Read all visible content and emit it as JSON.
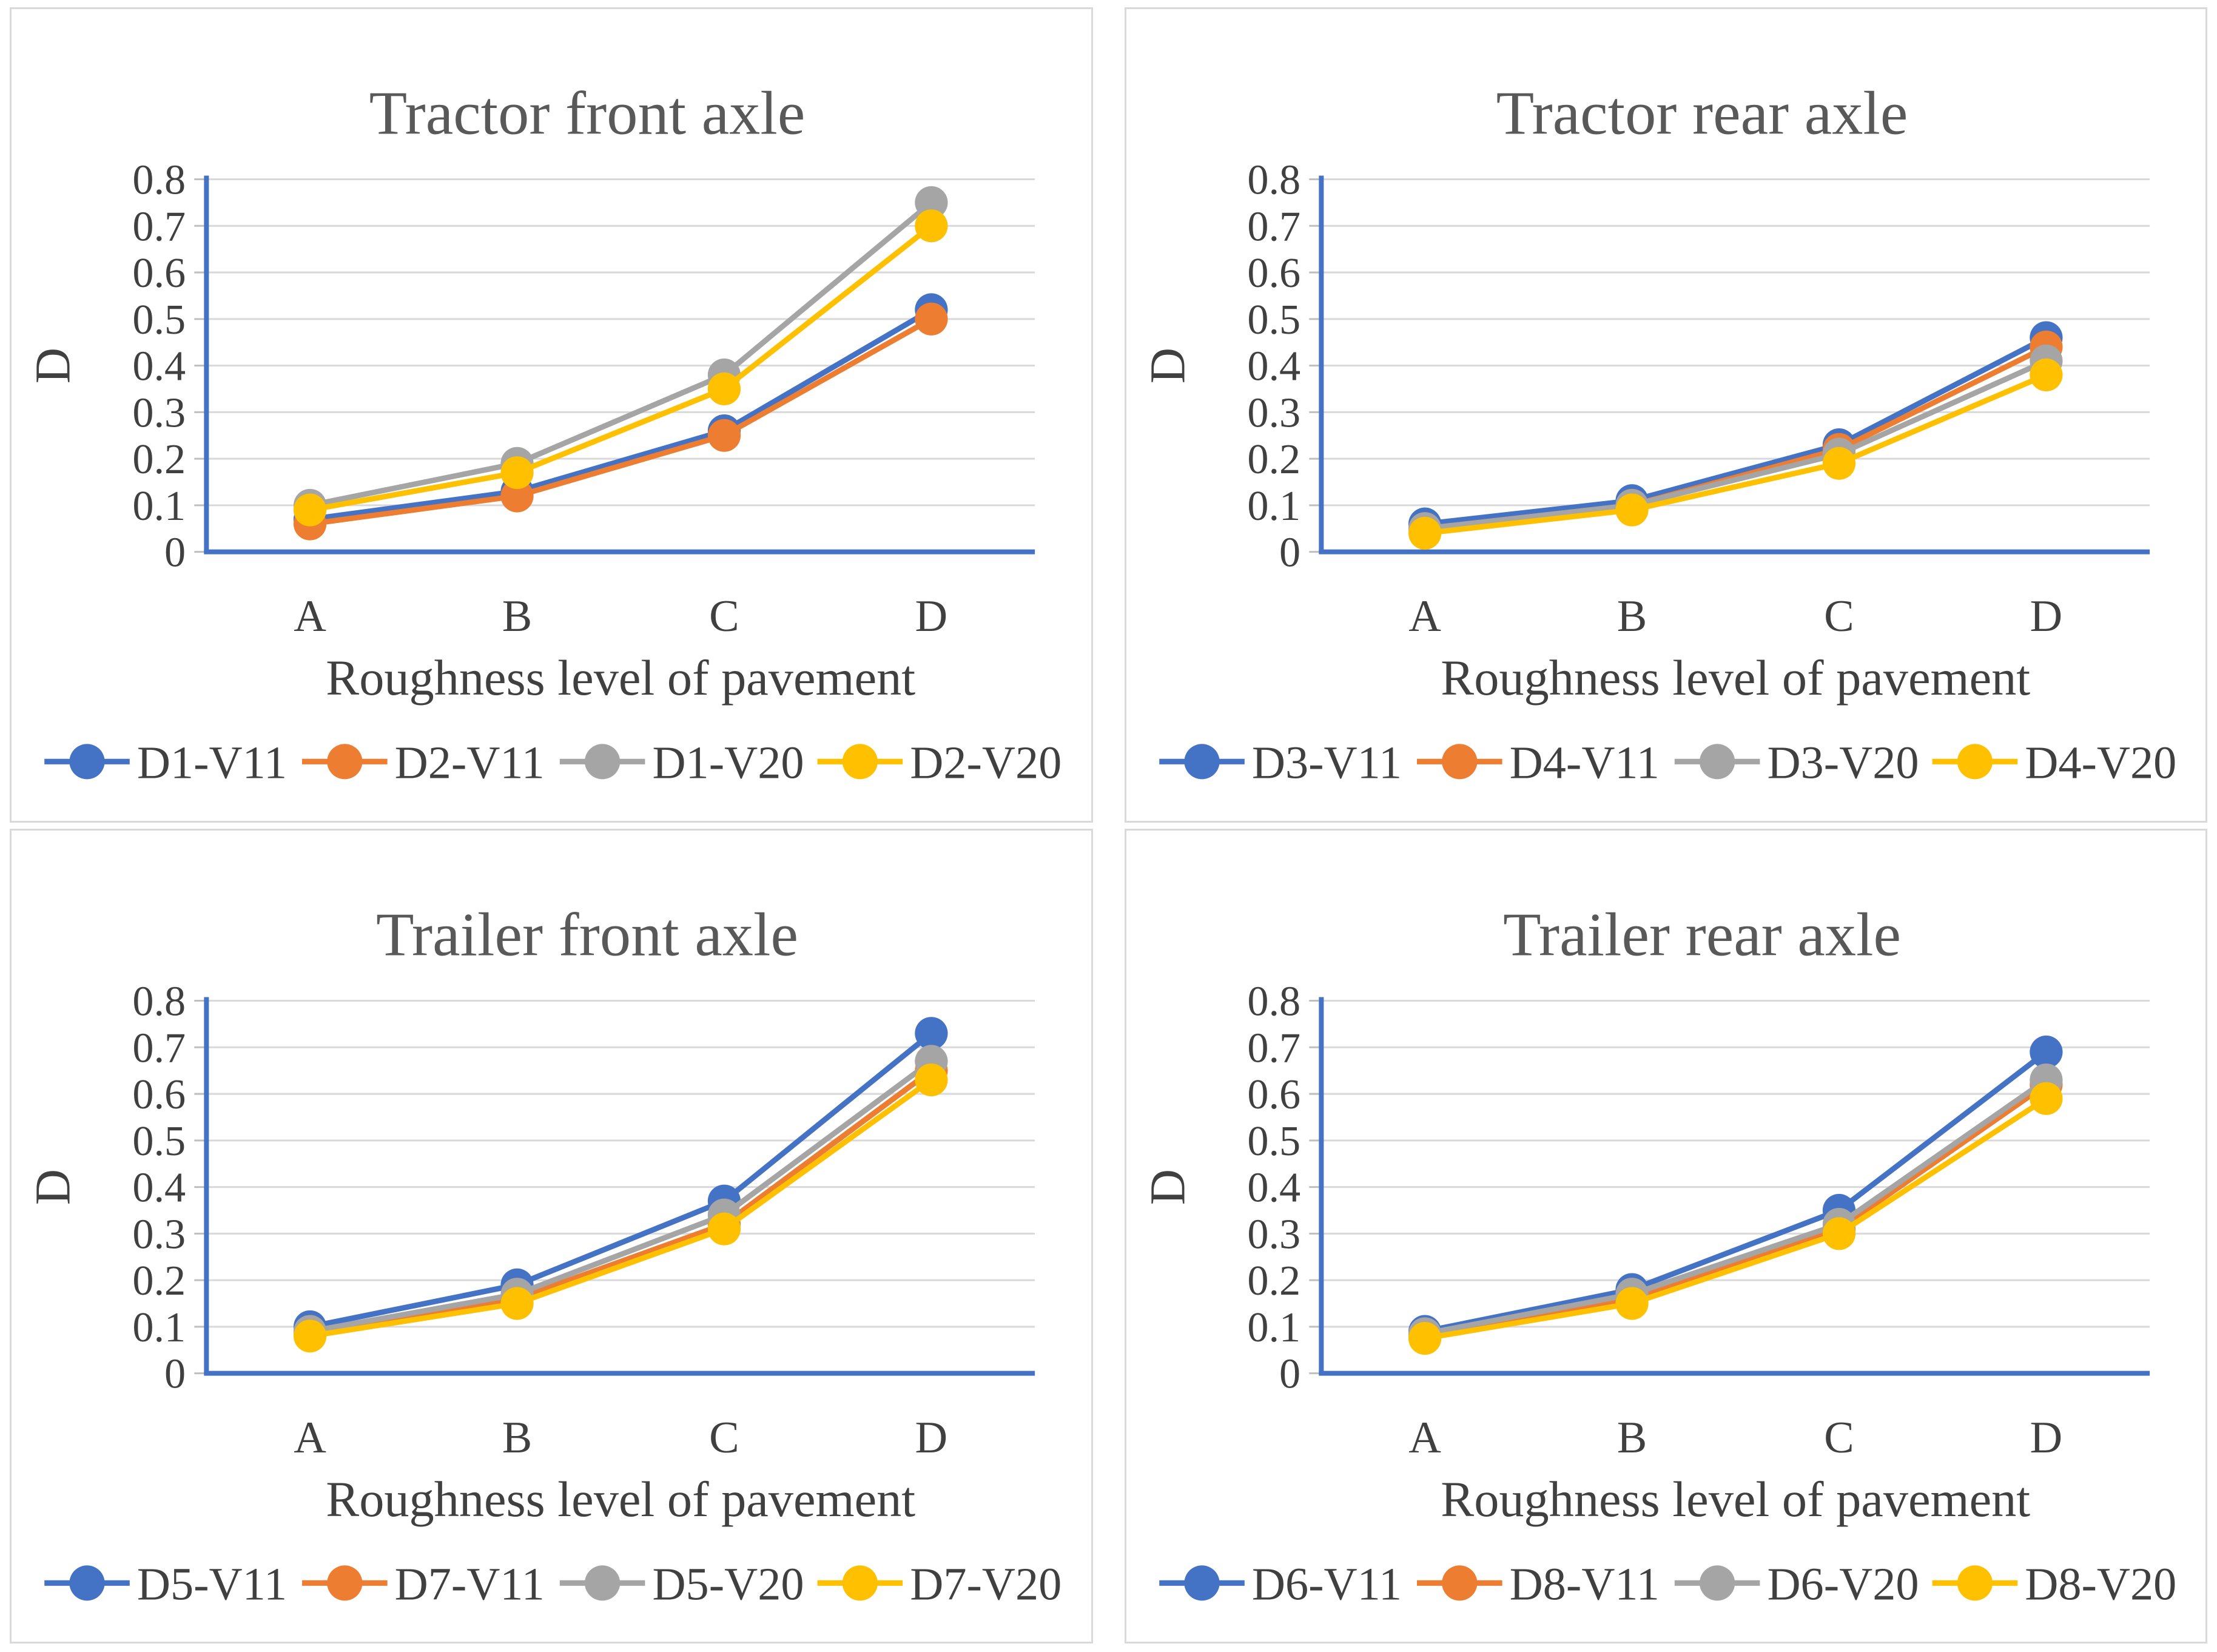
{
  "colors": {
    "blue": "#4472C4",
    "orange": "#ED7D31",
    "gray": "#A5A5A5",
    "yellow": "#FFC000",
    "axis_line": "#4472C4",
    "gridline": "#D9D9D9",
    "tick_stub": "#BFBFBF",
    "title_text": "#595959",
    "label_text": "#404040",
    "panel_border": "#D9D9D9"
  },
  "chart_data": [
    {
      "type": "line",
      "title": "Tractor front axle",
      "categories": [
        "A",
        "B",
        "C",
        "D"
      ],
      "xlabel": "Roughness level of pavement",
      "ylabel": "D",
      "ylim": [
        0,
        0.8
      ],
      "ytick_interval": 0.1,
      "grid": true,
      "legend_position": "bottom",
      "marker": "circle",
      "series": [
        {
          "name": "D1-V11",
          "color": "blue",
          "values": [
            0.07,
            0.13,
            0.26,
            0.52
          ]
        },
        {
          "name": "D2-V11",
          "color": "orange",
          "values": [
            0.06,
            0.12,
            0.25,
            0.5
          ]
        },
        {
          "name": "D1-V20",
          "color": "gray",
          "values": [
            0.1,
            0.19,
            0.38,
            0.75
          ]
        },
        {
          "name": "D2-V20",
          "color": "yellow",
          "values": [
            0.09,
            0.17,
            0.35,
            0.7
          ]
        }
      ]
    },
    {
      "type": "line",
      "title": "Tractor rear axle",
      "categories": [
        "A",
        "B",
        "C",
        "D"
      ],
      "xlabel": "Roughness level of pavement",
      "ylabel": "D",
      "ylim": [
        0,
        0.8
      ],
      "ytick_interval": 0.1,
      "grid": true,
      "legend_position": "bottom",
      "marker": "circle",
      "series": [
        {
          "name": "D3-V11",
          "color": "blue",
          "values": [
            0.06,
            0.11,
            0.23,
            0.46
          ]
        },
        {
          "name": "D4-V11",
          "color": "orange",
          "values": [
            0.05,
            0.1,
            0.22,
            0.44
          ]
        },
        {
          "name": "D3-V20",
          "color": "gray",
          "values": [
            0.05,
            0.1,
            0.21,
            0.41
          ]
        },
        {
          "name": "D4-V20",
          "color": "yellow",
          "values": [
            0.04,
            0.09,
            0.19,
            0.38
          ]
        }
      ]
    },
    {
      "type": "line",
      "title": "Trailer front axle",
      "categories": [
        "A",
        "B",
        "C",
        "D"
      ],
      "xlabel": "Roughness level of pavement",
      "ylabel": "D",
      "ylim": [
        0,
        0.8
      ],
      "ytick_interval": 0.1,
      "grid": true,
      "legend_position": "bottom",
      "marker": "circle",
      "series": [
        {
          "name": "D5-V11",
          "color": "blue",
          "values": [
            0.1,
            0.19,
            0.37,
            0.73
          ]
        },
        {
          "name": "D7-V11",
          "color": "orange",
          "values": [
            0.09,
            0.16,
            0.32,
            0.65
          ]
        },
        {
          "name": "D5-V20",
          "color": "gray",
          "values": [
            0.09,
            0.17,
            0.34,
            0.67
          ]
        },
        {
          "name": "D7-V20",
          "color": "yellow",
          "values": [
            0.08,
            0.15,
            0.31,
            0.63
          ]
        }
      ]
    },
    {
      "type": "line",
      "title": "Trailer rear axle",
      "categories": [
        "A",
        "B",
        "C",
        "D"
      ],
      "xlabel": "Roughness level of pavement",
      "ylabel": "D",
      "ylim": [
        0,
        0.8
      ],
      "ytick_interval": 0.1,
      "grid": true,
      "legend_position": "bottom",
      "marker": "circle",
      "series": [
        {
          "name": "D6-V11",
          "color": "blue",
          "values": [
            0.09,
            0.18,
            0.35,
            0.69
          ]
        },
        {
          "name": "D8-V11",
          "color": "orange",
          "values": [
            0.08,
            0.16,
            0.31,
            0.62
          ]
        },
        {
          "name": "D6-V20",
          "color": "gray",
          "values": [
            0.085,
            0.17,
            0.32,
            0.63
          ]
        },
        {
          "name": "D8-V20",
          "color": "yellow",
          "values": [
            0.075,
            0.15,
            0.3,
            0.59
          ]
        }
      ]
    }
  ]
}
